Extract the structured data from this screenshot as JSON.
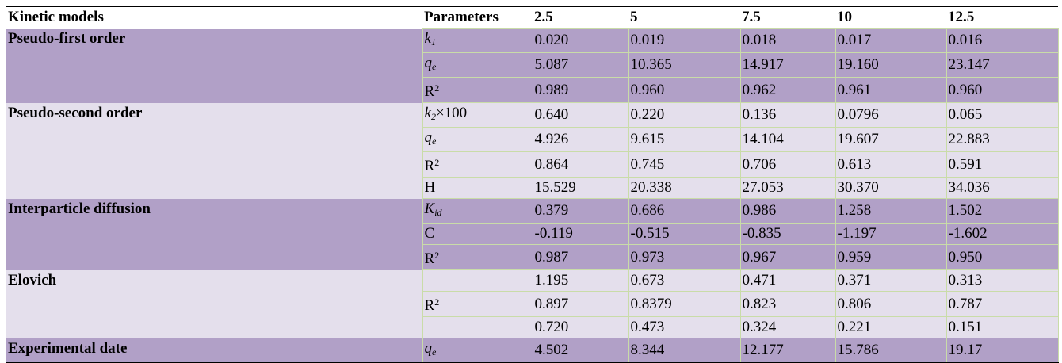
{
  "table": {
    "header": [
      "Kinetic models",
      "Parameters",
      "2.5",
      "5",
      "7.5",
      "10",
      "12.5"
    ],
    "groups": [
      {
        "model": "Pseudo-first order",
        "shade": "dark",
        "rows": [
          {
            "param": [
              {
                "text": "k",
                "format": "italic"
              },
              {
                "text": "1",
                "format": "sub-italic"
              }
            ],
            "values": [
              "0.020",
              "0.019",
              "0.018",
              "0.017",
              "0.016"
            ]
          },
          {
            "param": [
              {
                "text": "q",
                "format": "italic"
              },
              {
                "text": "e",
                "format": "sub-italic"
              }
            ],
            "values": [
              "5.087",
              "10.365",
              "14.917",
              "19.160",
              "23.147"
            ]
          },
          {
            "param": [
              {
                "text": "R",
                "format": "plain"
              },
              {
                "text": "2",
                "format": "sup"
              }
            ],
            "values": [
              "0.989",
              "0.960",
              "0.962",
              "0.961",
              "0.960"
            ]
          }
        ]
      },
      {
        "model": "Pseudo-second order",
        "shade": "light",
        "rows": [
          {
            "param": [
              {
                "text": "k",
                "format": "italic"
              },
              {
                "text": "2",
                "format": "sub-italic"
              },
              {
                "text": "×100",
                "format": "plain"
              }
            ],
            "values": [
              "0.640",
              "0.220",
              "0.136",
              "0.0796",
              "0.065"
            ]
          },
          {
            "param": [
              {
                "text": "q",
                "format": "italic"
              },
              {
                "text": "e",
                "format": "sub-italic"
              }
            ],
            "values": [
              "4.926",
              "9.615",
              "14.104",
              "19.607",
              "22.883"
            ]
          },
          {
            "param": [
              {
                "text": "R",
                "format": "plain"
              },
              {
                "text": "2",
                "format": "sup"
              }
            ],
            "values": [
              "0.864",
              "0.745",
              "0.706",
              "0.613",
              "0.591"
            ]
          },
          {
            "param": [
              {
                "text": "H",
                "format": "plain"
              }
            ],
            "values": [
              "15.529",
              "20.338",
              "27.053",
              "30.370",
              "34.036"
            ]
          }
        ]
      },
      {
        "model": "Interparticle diffusion",
        "shade": "dark",
        "rows": [
          {
            "param": [
              {
                "text": "K",
                "format": "italic"
              },
              {
                "text": "id",
                "format": "sub-italic"
              }
            ],
            "values": [
              "0.379",
              "0.686",
              "0.986",
              "1.258",
              "1.502"
            ]
          },
          {
            "param": [
              {
                "text": "C",
                "format": "plain"
              }
            ],
            "values": [
              "-0.119",
              "-0.515",
              "-0.835",
              "-1.197",
              "-1.602"
            ]
          },
          {
            "param": [
              {
                "text": "R",
                "format": "plain"
              },
              {
                "text": "2",
                "format": "sup"
              }
            ],
            "values": [
              "0.987",
              "0.973",
              "0.967",
              "0.959",
              "0.950"
            ]
          }
        ]
      },
      {
        "model": "Elovich",
        "shade": "light",
        "rows": [
          {
            "param": [],
            "values": [
              "1.195",
              "0.673",
              "0.471",
              "0.371",
              "0.313"
            ]
          },
          {
            "param": [
              {
                "text": "R",
                "format": "plain"
              },
              {
                "text": "2",
                "format": "sup"
              }
            ],
            "values": [
              "0.897",
              "0.8379",
              "0.823",
              "0.806",
              "0.787"
            ]
          },
          {
            "param": [],
            "values": [
              "0.720",
              "0.473",
              "0.324",
              "0.221",
              "0.151"
            ]
          }
        ]
      },
      {
        "model": "Experimental date",
        "shade": "dark",
        "rows": [
          {
            "param": [
              {
                "text": "q",
                "format": "italic"
              },
              {
                "text": "e",
                "format": "sub-italic"
              }
            ],
            "values": [
              "4.502",
              "8.344",
              "12.177",
              "15.786",
              "19.17"
            ]
          }
        ]
      }
    ]
  }
}
